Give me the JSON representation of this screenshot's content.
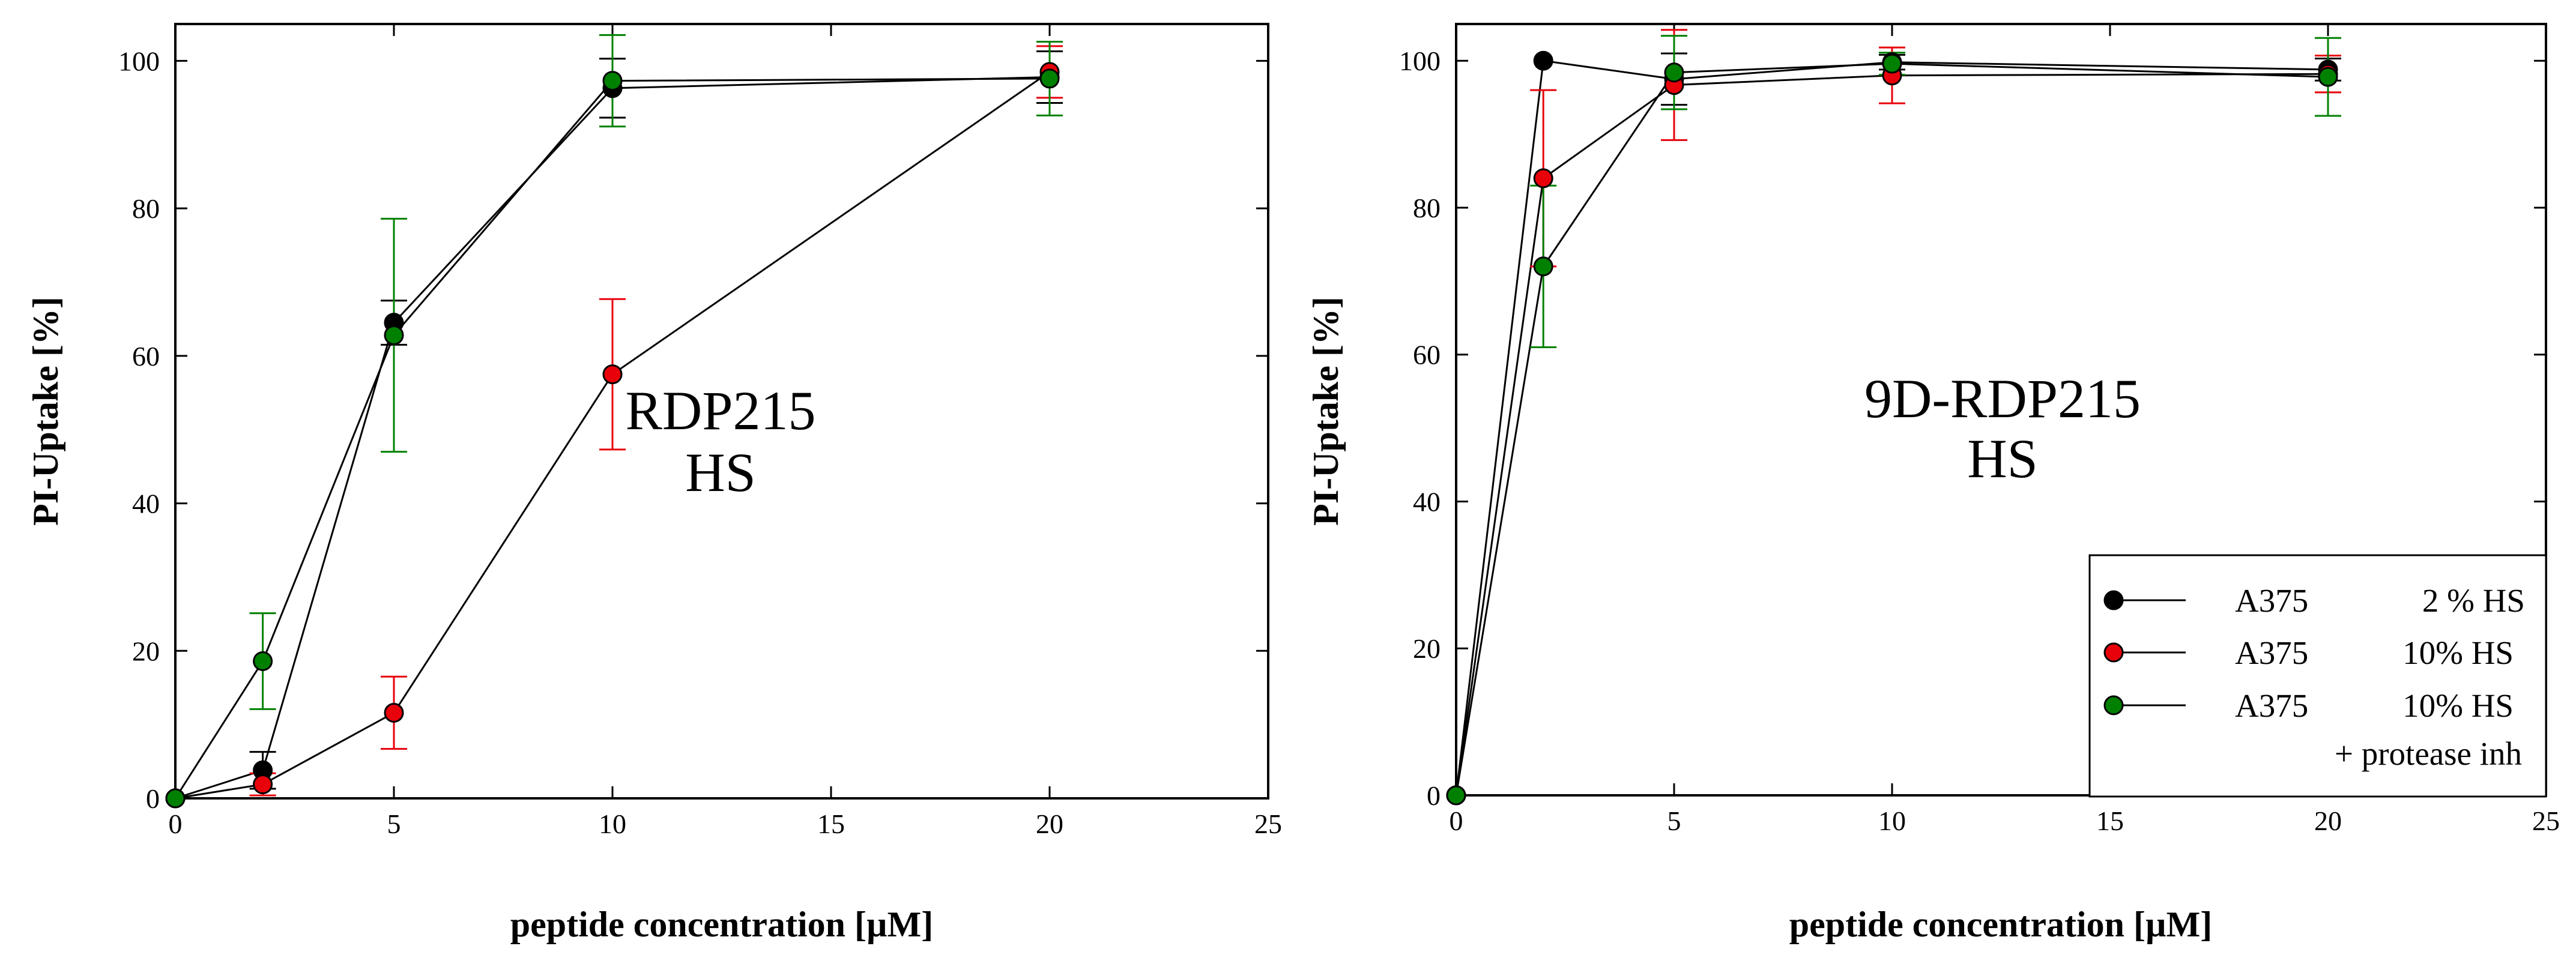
{
  "chart_data": [
    {
      "type": "line",
      "title": "",
      "annotation": [
        "RDP215",
        "HS"
      ],
      "xlabel": "peptide concentration [µM]",
      "ylabel": "PI-Uptake [%]",
      "xlim": [
        0,
        25
      ],
      "ylim": [
        0,
        105
      ],
      "x_ticks": [
        "0",
        "5",
        "10",
        "15",
        "20",
        "25"
      ],
      "y_ticks": [
        "0",
        "20",
        "40",
        "60",
        "80",
        "100"
      ],
      "series": [
        {
          "name": "A375 2 % HS",
          "color": "#000000",
          "x": [
            0,
            2,
            5,
            10,
            20
          ],
          "y": [
            0,
            3.8,
            64.5,
            96.3,
            97.8
          ],
          "err": [
            0,
            2.5,
            3.0,
            4.0,
            3.5
          ]
        },
        {
          "name": "A375 10% HS",
          "color": "#e8000b",
          "x": [
            0,
            2,
            5,
            10,
            20
          ],
          "y": [
            0,
            1.9,
            11.6,
            57.5,
            98.5
          ],
          "err": [
            0,
            1.5,
            4.9,
            10.2,
            3.5
          ]
        },
        {
          "name": "A375 10% HS + protease inh",
          "color": "#008000",
          "x": [
            0,
            2,
            5,
            10,
            20
          ],
          "y": [
            0,
            18.6,
            62.8,
            97.3,
            97.6
          ],
          "err": [
            0,
            6.5,
            15.8,
            6.2,
            5.0
          ]
        }
      ]
    },
    {
      "type": "line",
      "title": "",
      "annotation": [
        "9D-RDP215",
        "HS"
      ],
      "xlabel": "peptide concentration [µM]",
      "ylabel": "PI-Uptake [%]",
      "xlim": [
        0,
        25
      ],
      "ylim": [
        0,
        105
      ],
      "x_ticks": [
        "0",
        "5",
        "10",
        "15",
        "20",
        "25"
      ],
      "y_ticks": [
        "0",
        "20",
        "40",
        "60",
        "80",
        "100"
      ],
      "legend": {
        "placement": "bottom-right",
        "entries": [
          {
            "label": "A375",
            "detail": "2 % HS",
            "extra": "",
            "color": "#000000"
          },
          {
            "label": "A375",
            "detail": "10% HS",
            "extra": "",
            "color": "#e8000b"
          },
          {
            "label": "A375",
            "detail": "10% HS",
            "extra": "+ protease inh",
            "color": "#008000"
          }
        ]
      },
      "series": [
        {
          "name": "A375 2 % HS",
          "color": "#000000",
          "x": [
            0,
            2,
            5,
            10,
            20
          ],
          "y": [
            0,
            100,
            97.5,
            99.8,
            98.8
          ],
          "err": [
            0,
            0,
            3.5,
            1.0,
            1.5
          ]
        },
        {
          "name": "A375 10% HS",
          "color": "#e8000b",
          "x": [
            0,
            2,
            5,
            10,
            20
          ],
          "y": [
            0,
            84,
            96.7,
            98,
            98.2
          ],
          "err": [
            0,
            12,
            7.5,
            3.8,
            2.5
          ]
        },
        {
          "name": "A375 10% HS + protease inh",
          "color": "#008000",
          "x": [
            0,
            2,
            5,
            10,
            20
          ],
          "y": [
            0,
            72,
            98.4,
            99.6,
            97.8
          ],
          "err": [
            0,
            11,
            5.0,
            1.5,
            5.3
          ]
        }
      ]
    }
  ]
}
